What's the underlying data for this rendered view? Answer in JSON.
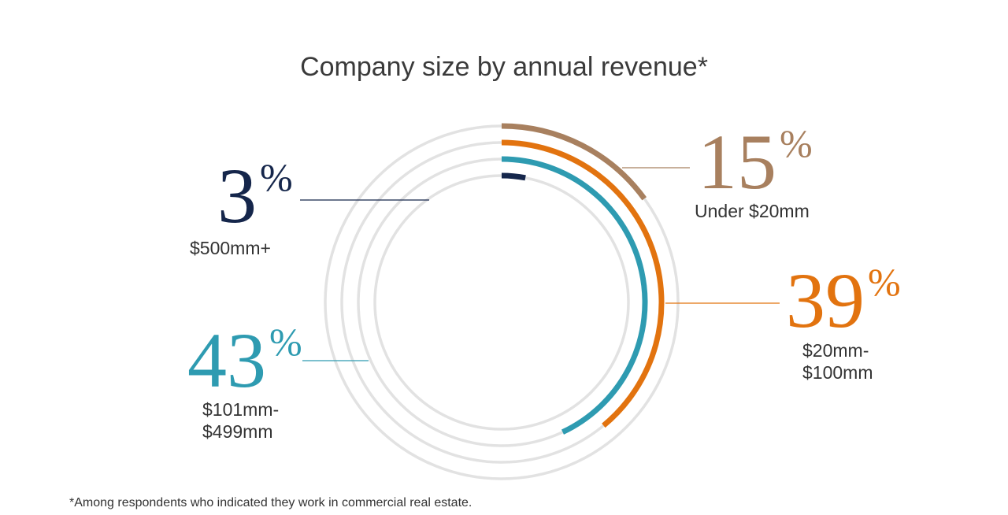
{
  "chart_data": {
    "type": "radial",
    "title": "Company size by annual revenue*",
    "categories": [
      "Under $20mm",
      "$20mm-$100mm",
      "$101mm-$499mm",
      "$500mm+"
    ],
    "values": [
      15,
      39,
      43,
      3
    ],
    "value_labels": [
      "15%",
      "39%",
      "43%",
      "3%"
    ],
    "colors": [
      "#a8805f",
      "#e2730f",
      "#2e9bb1",
      "#15264b"
    ],
    "note": "*Among respondents who indicated they work in commercial real estate."
  }
}
